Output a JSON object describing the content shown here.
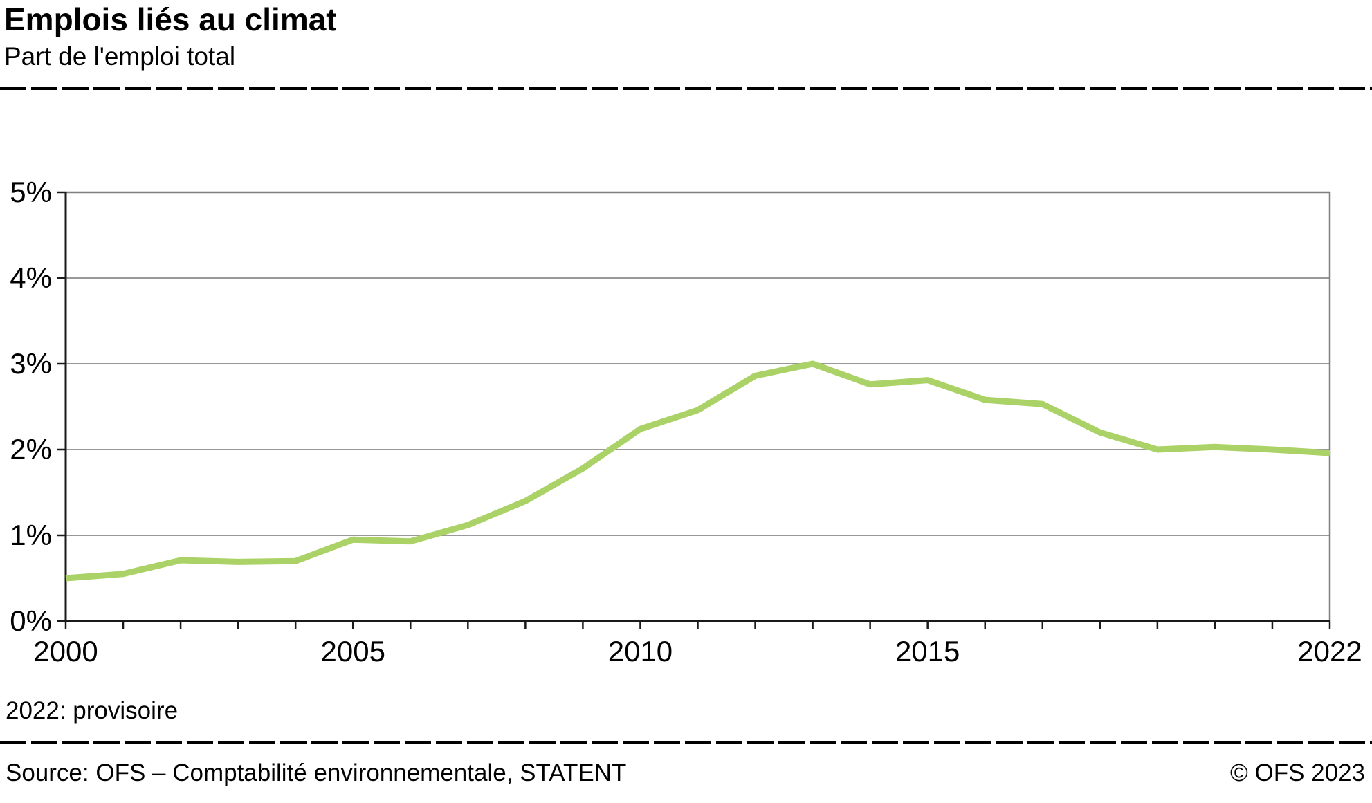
{
  "header": {
    "title": "Emplois liés au climat",
    "subtitle": "Part de l'emploi total"
  },
  "footnote": "2022: provisoire",
  "footer": {
    "source": "Source: OFS – Comptabilité environnementale, STATENT",
    "copyright": "© OFS 2023"
  },
  "colors": {
    "line": "#aad266",
    "grid": "#999999",
    "axis": "#1a1a1a",
    "frame": "#808080"
  },
  "chart_data": {
    "type": "line",
    "title": "Emplois liés au climat",
    "subtitle": "Part de l'emploi total",
    "xlabel": "",
    "ylabel": "Part de l'emploi total (%)",
    "x": [
      2000,
      2001,
      2002,
      2003,
      2004,
      2005,
      2006,
      2007,
      2008,
      2009,
      2010,
      2011,
      2012,
      2013,
      2014,
      2015,
      2016,
      2017,
      2018,
      2019,
      2020,
      2021,
      2022
    ],
    "series": [
      {
        "name": "Part de l'emploi total",
        "values": [
          0.5,
          0.55,
          0.71,
          0.69,
          0.7,
          0.95,
          0.93,
          1.12,
          1.4,
          1.78,
          2.24,
          2.46,
          2.86,
          3.0,
          2.76,
          2.81,
          2.58,
          2.53,
          2.2,
          2.0,
          2.03,
          2.0,
          1.96
        ]
      }
    ],
    "xlim": [
      2000,
      2022
    ],
    "ylim": [
      0,
      5
    ],
    "xticks": [
      2000,
      2005,
      2010,
      2015,
      2022
    ],
    "yticks": [
      0,
      1,
      2,
      3,
      4,
      5
    ],
    "ytick_suffix": "%",
    "grid": true,
    "legend_position": "none"
  }
}
